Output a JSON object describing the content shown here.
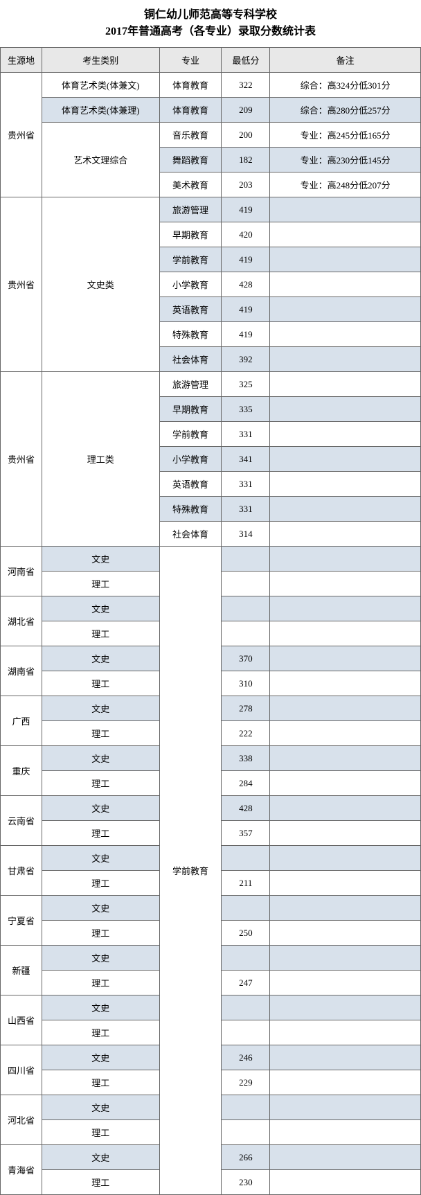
{
  "title_line1": "铜仁幼儿师范高等专科学校",
  "title_line2": "2017年普通高考（各专业）录取分数统计表",
  "headers": {
    "source": "生源地",
    "category": "考生类别",
    "major": "专业",
    "score": "最低分",
    "remark": "备注"
  },
  "section1": {
    "province": "贵州省",
    "rows": [
      {
        "category": "体育艺术类(体兼文)",
        "major": "体育教育",
        "score": "322",
        "remark": "综合：高324分低301分"
      },
      {
        "category": "体育艺术类(体兼理)",
        "major": "体育教育",
        "score": "209",
        "remark": "综合：高280分低257分",
        "shaded": true
      },
      {
        "category": "艺术文理综合",
        "major": "音乐教育",
        "score": "200",
        "remark": "专业：高245分低165分"
      },
      {
        "category": "",
        "major": "舞蹈教育",
        "score": "182",
        "remark": "专业：高230分低145分",
        "shaded": true
      },
      {
        "category": "",
        "major": "美术教育",
        "score": "203",
        "remark": "专业：高248分低207分"
      }
    ]
  },
  "section2": {
    "province": "贵州省",
    "category": "文史类",
    "rows": [
      {
        "major": "旅游管理",
        "score": "419",
        "shaded": true
      },
      {
        "major": "早期教育",
        "score": "420"
      },
      {
        "major": "学前教育",
        "score": "419",
        "shaded": true
      },
      {
        "major": "小学教育",
        "score": "428"
      },
      {
        "major": "英语教育",
        "score": "419",
        "shaded": true
      },
      {
        "major": "特殊教育",
        "score": "419"
      },
      {
        "major": "社会体育",
        "score": "392",
        "shaded": true
      }
    ]
  },
  "section3": {
    "province": "贵州省",
    "category": "理工类",
    "rows": [
      {
        "major": "旅游管理",
        "score": "325"
      },
      {
        "major": "早期教育",
        "score": "335",
        "shaded": true
      },
      {
        "major": "学前教育",
        "score": "331"
      },
      {
        "major": "小学教育",
        "score": "341",
        "shaded": true
      },
      {
        "major": "英语教育",
        "score": "331"
      },
      {
        "major": "特殊教育",
        "score": "331",
        "shaded": true
      },
      {
        "major": "社会体育",
        "score": "314"
      }
    ]
  },
  "section4": {
    "major": "学前教育",
    "provinces": [
      {
        "name": "河南省",
        "wenshi": "",
        "ligong": "",
        "wenshi_shaded": true
      },
      {
        "name": "湖北省",
        "wenshi": "",
        "ligong": "",
        "wenshi_shaded": true
      },
      {
        "name": "湖南省",
        "wenshi": "370",
        "ligong": "310",
        "wenshi_shaded": true
      },
      {
        "name": "广西",
        "wenshi": "278",
        "ligong": "222",
        "wenshi_shaded": true
      },
      {
        "name": "重庆",
        "wenshi": "338",
        "ligong": "284",
        "wenshi_shaded": true
      },
      {
        "name": "云南省",
        "wenshi": "428",
        "ligong": "357",
        "wenshi_shaded": true
      },
      {
        "name": "甘肃省",
        "wenshi": "",
        "ligong": "211",
        "wenshi_shaded": true
      },
      {
        "name": "宁夏省",
        "wenshi": "",
        "ligong": "250",
        "wenshi_shaded": true
      },
      {
        "name": "新疆",
        "wenshi": "",
        "ligong": "247",
        "wenshi_shaded": true
      },
      {
        "name": "山西省",
        "wenshi": "",
        "ligong": "",
        "wenshi_shaded": true
      },
      {
        "name": "四川省",
        "wenshi": "246",
        "ligong": "229",
        "wenshi_shaded": true
      },
      {
        "name": "河北省",
        "wenshi": "",
        "ligong": "",
        "wenshi_shaded": true
      },
      {
        "name": "青海省",
        "wenshi": "266",
        "ligong": "230",
        "wenshi_shaded": true
      }
    ],
    "wenshi_label": "文史",
    "ligong_label": "理工"
  }
}
